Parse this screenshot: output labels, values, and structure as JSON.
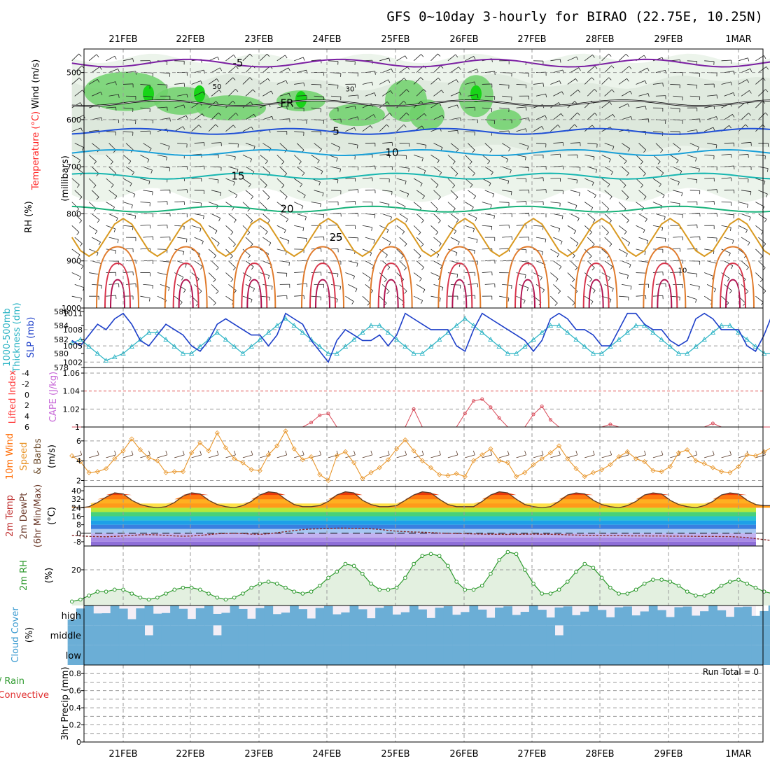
{
  "chart_data": {
    "type": "line",
    "title": "GFS 0~10day 3-hourly for BIRAO (22.75E, 10.25N)",
    "dates": [
      "21FEB",
      "22FEB",
      "23FEB",
      "24FEB",
      "25FEB",
      "26FEB",
      "27FEB",
      "28FEB",
      "29FEB",
      "1MAR"
    ],
    "panels": {
      "upper": {
        "labels": [
          "Wind (m/s)",
          "Temperature (°C)",
          "RH (%)",
          "(millibars)"
        ],
        "yticks": [
          "500",
          "600",
          "700",
          "800",
          "900",
          "1000"
        ],
        "temp_contours": [
          {
            "label": "-5",
            "level": -5,
            "color": "#7b1fa2"
          },
          {
            "label": "FR",
            "level": 0,
            "color": "#000000"
          },
          {
            "label": "5",
            "level": 5,
            "color": "#1f4fd6"
          },
          {
            "label": "10",
            "level": 10,
            "color": "#1aa0d8"
          },
          {
            "label": "15",
            "level": 15,
            "color": "#17b6b0"
          },
          {
            "label": "20",
            "level": 20,
            "color": "#18b27a"
          },
          {
            "label": "25",
            "level": 25,
            "color": "#d99a22"
          }
        ],
        "rh_labels": [
          "50",
          "30",
          "10"
        ]
      },
      "slp": {
        "labels": [
          "1000-500mb",
          "Thickness (dm)",
          "SLP (mb)"
        ],
        "left_ticks": [
          "586",
          "584",
          "582",
          "580",
          "578"
        ],
        "right_ticks": [
          "1011",
          "1008",
          "1005",
          "1002"
        ],
        "slp_values": [
          1006,
          1005,
          1007,
          1009,
          1008,
          1010,
          1011,
          1009,
          1006,
          1005,
          1007,
          1009,
          1008,
          1007,
          1005,
          1004,
          1006,
          1009,
          1010,
          1009,
          1008,
          1007,
          1007,
          1005,
          1007,
          1011,
          1010,
          1009,
          1006,
          1004,
          1002,
          1006,
          1008,
          1007,
          1006,
          1006,
          1007,
          1005,
          1007,
          1011,
          1010,
          1009,
          1008,
          1008,
          1008,
          1005,
          1004,
          1008,
          1011,
          1010,
          1009,
          1008,
          1007,
          1006,
          1004,
          1006,
          1010,
          1011,
          1010,
          1008,
          1008,
          1007,
          1005,
          1005,
          1008,
          1011,
          1011,
          1009,
          1008,
          1008,
          1006,
          1005,
          1006,
          1010,
          1011,
          1010,
          1008,
          1008,
          1008,
          1005,
          1004,
          1007,
          1011
        ],
        "thickness_values": [
          581.5,
          582,
          581,
          580,
          579,
          579.5,
          580,
          581,
          582,
          583,
          583,
          582,
          581,
          580,
          580,
          581,
          582,
          583,
          582,
          581,
          580,
          581,
          582,
          583,
          584,
          585,
          584,
          583,
          582,
          581,
          580,
          580,
          581,
          582,
          583,
          584,
          584,
          583,
          582,
          581,
          580,
          580,
          581,
          582,
          583,
          584,
          585,
          584,
          583,
          582,
          581,
          580,
          580,
          581,
          582,
          583,
          584,
          584,
          583,
          582,
          581,
          580,
          580,
          581,
          582,
          583,
          584,
          584,
          583,
          582,
          581,
          580,
          580,
          581,
          582,
          583,
          584,
          584,
          583,
          582,
          581,
          580,
          580
        ]
      },
      "cape": {
        "labels": [
          "Lifted Index",
          "CAPE (J/kg)"
        ],
        "left_ticks": [
          "-4",
          "-2",
          "0",
          "2",
          "4",
          "6"
        ],
        "right_ticks": [
          "1.06",
          "1.04",
          "1.02",
          "1"
        ],
        "cape_values": [
          1,
          1,
          1,
          1,
          1,
          1,
          1,
          1,
          1,
          1,
          1,
          1,
          1,
          1,
          1,
          1,
          1,
          1,
          1,
          1,
          1,
          1,
          1,
          1,
          1,
          1,
          1,
          1,
          1.005,
          1.013,
          1.015,
          1,
          1,
          1,
          1,
          1,
          1,
          1,
          1,
          1,
          1.02,
          1,
          1,
          1,
          1,
          1,
          1.015,
          1.029,
          1.031,
          1.022,
          1.01,
          1,
          1,
          1,
          1.014,
          1.023,
          1.008,
          1,
          1,
          1,
          1,
          1,
          1,
          1.003,
          1,
          1,
          1,
          1,
          1,
          1,
          1,
          1,
          1,
          1,
          1,
          1.004,
          1,
          1,
          1,
          1,
          1,
          1,
          1
        ]
      },
      "wind": {
        "labels": [
          "10m Wind",
          "Speed",
          "& Barbs",
          "(m/s)"
        ],
        "yticks": [
          "6",
          "4",
          "2"
        ],
        "speed_values": [
          4.5,
          3.9,
          2.8,
          2.9,
          3.2,
          4.2,
          5.0,
          6.2,
          5.1,
          4.3,
          4.0,
          2.8,
          2.9,
          2.9,
          4.8,
          5.8,
          5.0,
          6.8,
          5.3,
          4.2,
          3.8,
          3.1,
          3.0,
          4.6,
          5.5,
          7.0,
          5.2,
          4.1,
          4.4,
          2.6,
          2.0,
          4.5,
          4.9,
          3.8,
          2.2,
          2.8,
          3.3,
          4.1,
          5.2,
          6.1,
          5.0,
          4.0,
          3.3,
          2.6,
          2.5,
          2.7,
          2.4,
          4.0,
          4.6,
          5.2,
          4.0,
          3.8,
          2.4,
          2.8,
          3.6,
          4.2,
          4.8,
          5.5,
          4.2,
          3.2,
          2.4,
          2.8,
          3.1,
          3.6,
          4.4,
          4.9,
          4.2,
          3.9,
          3.0,
          2.9,
          3.4,
          4.8,
          5.1,
          4.0,
          3.7,
          3.3,
          2.9,
          2.8,
          3.4,
          4.6,
          4.5,
          4.9,
          5.4
        ]
      },
      "temp2m": {
        "labels": [
          "2m Temp",
          "2m DewPt",
          "(6hr Min/Max)",
          "(°C)"
        ],
        "yticks": [
          "40",
          "32",
          "24",
          "16",
          "8",
          "0",
          "-8"
        ],
        "temp_values": [
          25,
          24,
          25,
          29,
          34,
          38,
          37,
          31,
          27,
          25,
          24,
          25,
          29,
          35,
          38,
          37,
          31,
          27,
          25,
          24,
          26,
          30,
          36,
          39,
          38,
          32,
          27,
          25,
          25,
          26,
          30,
          36,
          39,
          38,
          31,
          27,
          25,
          25,
          26,
          31,
          36,
          39,
          38,
          32,
          27,
          25,
          25,
          25,
          30,
          36,
          39,
          38,
          32,
          27,
          25,
          24,
          25,
          30,
          36,
          38,
          37,
          31,
          27,
          25,
          24,
          26,
          30,
          36,
          38,
          37,
          31,
          27,
          25,
          24,
          26,
          30,
          36,
          38,
          37,
          31,
          27,
          26,
          26
        ],
        "dewpt_values": [
          -2,
          -2.5,
          -3,
          -3.2,
          -3.3,
          -3,
          -2.5,
          -2,
          -1.5,
          -1.3,
          -1.6,
          -2,
          -2.5,
          -2.8,
          -2.6,
          -2,
          -1.3,
          -0.5,
          -0.2,
          0,
          -0.3,
          -0.8,
          -1,
          -0.5,
          0.5,
          1.5,
          2.5,
          3.5,
          4,
          4.2,
          4.5,
          4.8,
          4.8,
          4.6,
          4.4,
          4.2,
          3.6,
          2.6,
          2,
          1.5,
          1.2,
          1,
          0.6,
          0.2,
          0,
          -0.2,
          -0.4,
          -0.6,
          -0.8,
          -0.9,
          -1,
          -1.1,
          -1,
          -0.9,
          -0.8,
          -0.9,
          -1,
          -1.2,
          -1.5,
          -1.7,
          -1.9,
          -2,
          -2.1,
          -2.2,
          -2.3,
          -2.4,
          -2.5,
          -2.5,
          -2.6,
          -2.6,
          -2.7,
          -2.7,
          -2.8,
          -2.9,
          -3,
          -3,
          -3.1,
          -3.2,
          -3.5,
          -4,
          -5,
          -6,
          -7
        ]
      },
      "rh2m": {
        "labels": [
          "2m RH",
          "(%)"
        ],
        "yticks": [
          "20"
        ],
        "rh_values": [
          4,
          5,
          7,
          9,
          9,
          10,
          10,
          8,
          6,
          5,
          6,
          8,
          10,
          11,
          11,
          10,
          8,
          6,
          5,
          6,
          8,
          11,
          13,
          14,
          13,
          11,
          9,
          8,
          9,
          12,
          16,
          19,
          23,
          22,
          18,
          13,
          10,
          10,
          11,
          16,
          23,
          27,
          28,
          27,
          22,
          14,
          10,
          10,
          12,
          18,
          25,
          29,
          28,
          20,
          13,
          8,
          8,
          10,
          14,
          19,
          23,
          21,
          16,
          11,
          8,
          8,
          10,
          13,
          15,
          15,
          14,
          12,
          9,
          7,
          7,
          9,
          12,
          14,
          15,
          13,
          11,
          9,
          8
        ]
      },
      "cloud": {
        "labels": [
          "Cloud Cover",
          "(%)"
        ],
        "layers": [
          "high",
          "middle",
          "low"
        ]
      },
      "precip": {
        "labels": [
          "Total / Rain",
          "Convective",
          "3hr Precip (mm)"
        ],
        "yticks": [
          "0.8",
          "0.6",
          "0.4",
          "0.2",
          "0"
        ],
        "run_total": "Run Total = 0"
      }
    },
    "colors": {
      "slp": "#1d3fc9",
      "thickness": "#2ab3c4",
      "cape": "#d94b5a",
      "wind_speed": "#e8962b",
      "rh2m": "#2e9a2e",
      "cloud": "#6baed6",
      "grid": "#9a9a9a"
    }
  }
}
